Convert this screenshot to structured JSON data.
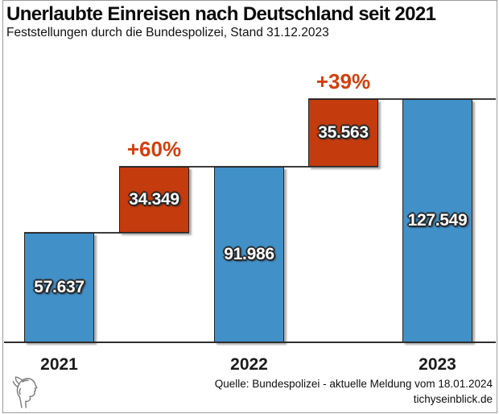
{
  "chart_data": {
    "type": "bar",
    "subtype": "waterfall",
    "title": "Unerlaubte Einreisen nach Deutschland seit 2021",
    "subtitle": "Feststellungen durch die Bundespolizei, Stand 31.12.2023",
    "categories": [
      "2021",
      "2022",
      "2023"
    ],
    "values": [
      57637,
      91986,
      127549
    ],
    "value_labels": [
      "57.637",
      "91.986",
      "127.549"
    ],
    "deltas": [
      {
        "value": 34349,
        "label": "34.349",
        "pct_label": "+60%",
        "from": 57637,
        "to": 91986
      },
      {
        "value": 35563,
        "label": "35.563",
        "pct_label": "+39%",
        "from": 91986,
        "to": 127549
      }
    ],
    "ylim": [
      0,
      127549
    ],
    "xlabel": "",
    "ylabel": "",
    "grid": false,
    "legend": false,
    "orientation": "vertical"
  },
  "colors": {
    "bar_blue": "#4190c8",
    "bar_orange": "#c43b0e",
    "pct_text": "#d2400e",
    "connector_line": "#3d3d3d",
    "frame": "#9b9b9b"
  },
  "footer": {
    "source_line": "Quelle: Bundespolizei - aktuelle Meldung vom 18.01.2024",
    "site_line": "tichyseinblick.de",
    "logo": "tichys-einblick-head-logo"
  }
}
